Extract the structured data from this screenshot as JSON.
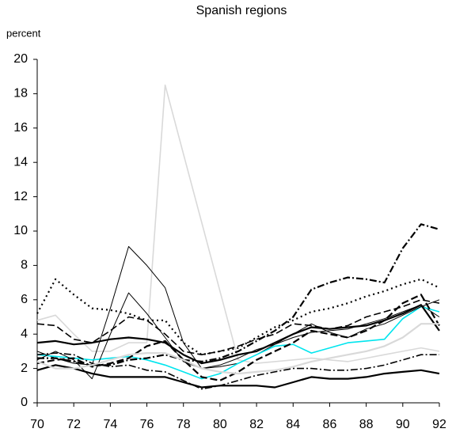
{
  "chart_data": {
    "type": "line",
    "title": "Spanish regions",
    "y_label": "percent",
    "x": [
      70,
      71,
      72,
      73,
      74,
      75,
      76,
      77,
      78,
      79,
      80,
      81,
      82,
      83,
      84,
      85,
      86,
      87,
      88,
      89,
      90,
      91,
      92
    ],
    "xlim": [
      70,
      92
    ],
    "xticks": [
      70,
      72,
      74,
      76,
      78,
      80,
      82,
      84,
      86,
      88,
      90,
      92
    ],
    "ylim": [
      0,
      20
    ],
    "yticks": [
      0,
      2,
      4,
      6,
      8,
      10,
      12,
      14,
      16,
      18,
      20
    ],
    "grid": false,
    "series": [
      {
        "color": "#d9d9d9",
        "style": "solid",
        "weight": "normal",
        "values": [
          4.8,
          5.1,
          4.0,
          3.0,
          3.0,
          3.5,
          3.5,
          18.5,
          14.5,
          10.5,
          6.5,
          2.5,
          2.3,
          2.4,
          2.5,
          2.6,
          2.5,
          2.4,
          2.6,
          2.8,
          3.0,
          3.2,
          3.0
        ]
      },
      {
        "color": "#000000",
        "style": "solid",
        "weight": "thin",
        "values": [
          3.0,
          2.6,
          2.3,
          2.2,
          5.5,
          9.1,
          8.0,
          6.7,
          3.5,
          2.0,
          2.1,
          2.3,
          2.8,
          3.4,
          3.8,
          4.1,
          4.2,
          4.3,
          4.6,
          4.9,
          5.3,
          5.7,
          5.0
        ]
      },
      {
        "color": "#00e5ee",
        "style": "solid",
        "weight": "normal",
        "values": [
          2.8,
          2.7,
          2.6,
          2.5,
          2.6,
          2.7,
          2.5,
          2.2,
          1.8,
          1.4,
          1.7,
          2.3,
          2.8,
          3.3,
          3.4,
          2.9,
          3.2,
          3.5,
          3.6,
          3.7,
          4.9,
          5.6,
          5.3
        ]
      },
      {
        "color": "#000000",
        "style": "solid",
        "weight": "thick",
        "values": [
          1.9,
          2.2,
          2.0,
          1.7,
          1.5,
          1.5,
          1.5,
          1.5,
          1.2,
          0.9,
          1.0,
          1.0,
          1.0,
          0.9,
          1.2,
          1.5,
          1.4,
          1.4,
          1.5,
          1.7,
          1.8,
          1.9,
          1.7
        ]
      },
      {
        "color": "#000000",
        "style": "dashdot",
        "weight": "thick",
        "values": [
          2.6,
          2.6,
          2.4,
          2.2,
          2.2,
          2.5,
          2.6,
          2.8,
          2.5,
          2.4,
          2.6,
          3.0,
          3.6,
          4.2,
          5.0,
          6.6,
          7.0,
          7.3,
          7.2,
          7.0,
          9.0,
          10.4,
          10.1
        ]
      },
      {
        "color": "#000000",
        "style": "dotted",
        "weight": "thick",
        "values": [
          5.2,
          7.2,
          6.3,
          5.5,
          5.4,
          5.2,
          4.8,
          4.8,
          3.5,
          2.8,
          3.0,
          3.2,
          3.8,
          4.4,
          4.8,
          5.3,
          5.5,
          5.8,
          6.2,
          6.5,
          6.9,
          7.2,
          6.7
        ]
      },
      {
        "color": "#000000",
        "style": "solid",
        "weight": "thick",
        "values": [
          3.5,
          3.6,
          3.4,
          3.5,
          3.7,
          3.8,
          3.7,
          3.5,
          2.8,
          2.3,
          2.5,
          2.8,
          3.0,
          3.5,
          4.0,
          4.4,
          4.3,
          4.4,
          4.5,
          4.8,
          5.2,
          5.7,
          4.2
        ]
      },
      {
        "color": "#000000",
        "style": "dashed",
        "weight": "thick",
        "values": [
          2.3,
          2.5,
          2.6,
          2.1,
          2.3,
          2.6,
          3.3,
          3.6,
          2.5,
          1.5,
          1.3,
          1.8,
          2.5,
          3.0,
          3.5,
          4.2,
          4.0,
          3.8,
          4.2,
          4.8,
          5.8,
          6.3,
          4.5
        ]
      },
      {
        "color": "#000000",
        "style": "dashdot",
        "weight": "normal",
        "values": [
          2.8,
          2.9,
          2.8,
          2.3,
          2.1,
          2.2,
          1.9,
          1.8,
          1.3,
          0.8,
          1.0,
          1.3,
          1.6,
          1.8,
          2.0,
          2.0,
          1.9,
          1.9,
          2.0,
          2.2,
          2.5,
          2.8,
          2.8
        ]
      },
      {
        "color": "#000000",
        "style": "solid",
        "weight": "thin",
        "values": [
          2.5,
          3.0,
          2.5,
          1.4,
          4.0,
          6.4,
          5.2,
          3.8,
          2.4,
          2.0,
          2.2,
          2.6,
          3.1,
          3.4,
          4.0,
          4.6,
          4.1,
          3.8,
          4.3,
          4.6,
          5.1,
          5.6,
          6.0
        ]
      },
      {
        "color": "#d9d9d9",
        "style": "solid",
        "weight": "thick",
        "values": [
          2.4,
          2.0,
          2.0,
          2.2,
          2.5,
          2.8,
          2.9,
          2.9,
          2.5,
          2.0,
          1.8,
          1.7,
          1.8,
          1.9,
          2.1,
          2.4,
          2.6,
          2.8,
          3.0,
          3.3,
          3.8,
          4.6,
          4.6
        ]
      },
      {
        "color": "#000000",
        "style": "dashed",
        "weight": "normal",
        "values": [
          4.6,
          4.5,
          3.7,
          3.5,
          4.2,
          5.0,
          4.8,
          4.0,
          3.0,
          2.8,
          3.0,
          3.3,
          3.7,
          4.0,
          4.6,
          4.5,
          4.3,
          4.5,
          5.0,
          5.3,
          5.6,
          6.0,
          5.8
        ]
      }
    ]
  }
}
